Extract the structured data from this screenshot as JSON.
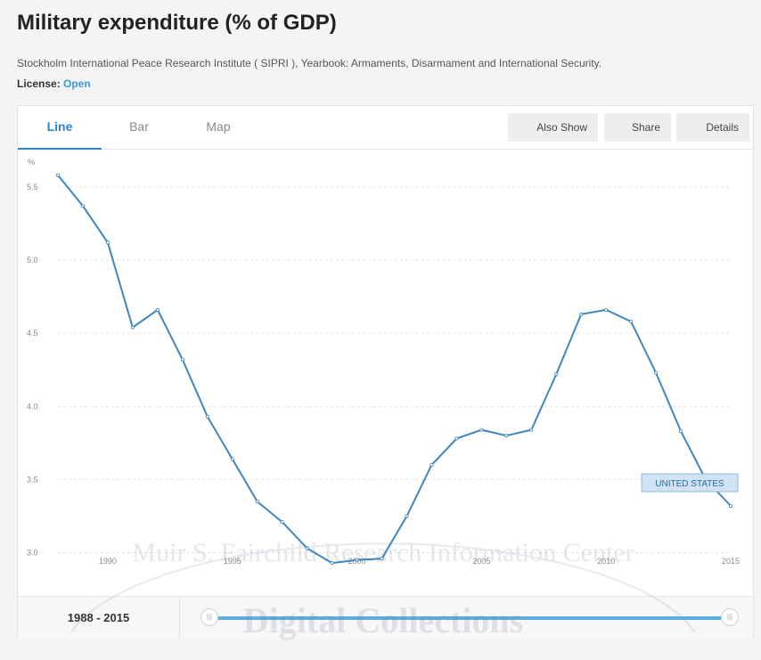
{
  "page": {
    "title": "Military expenditure (% of GDP)",
    "source": "Stockholm International Peace Research Institute ( SIPRI ), Yearbook: Armaments, Disarmament and International Security.",
    "license_label": "License:",
    "license_value": "Open"
  },
  "tabs": [
    {
      "label": "Line",
      "active": true
    },
    {
      "label": "Bar",
      "active": false
    },
    {
      "label": "Map",
      "active": false
    }
  ],
  "toolbar": {
    "also_show": "Also Show",
    "share": "Share",
    "details": "Details"
  },
  "footer": {
    "range_label": "1988 - 2015",
    "range_start": 1988,
    "range_end": 2015
  },
  "watermark": {
    "line1": "Muir S. Fairchild Research Information Center",
    "line2": "Digital Collections"
  },
  "colors": {
    "accent": "#2a86c9",
    "line": "#3d87bd",
    "label_bg": "#cfe3f3"
  },
  "chart_data": {
    "type": "line",
    "ylabel": "%",
    "ylim": [
      2.9,
      5.7
    ],
    "xlim": [
      1988,
      2015
    ],
    "yticks": [
      "3.0",
      "3.5",
      "4.0",
      "4.5",
      "5.0",
      "5.5"
    ],
    "xticks": [
      "1990",
      "1995",
      "2000",
      "2005",
      "2010",
      "2015"
    ],
    "grid": true,
    "series": [
      {
        "name": "UNITED STATES",
        "x": [
          1988,
          1989,
          1990,
          1991,
          1992,
          1993,
          1994,
          1995,
          1996,
          1997,
          1998,
          1999,
          2000,
          2001,
          2002,
          2003,
          2004,
          2005,
          2006,
          2007,
          2008,
          2009,
          2010,
          2011,
          2012,
          2013,
          2014,
          2015
        ],
        "y": [
          5.58,
          5.37,
          5.12,
          4.54,
          4.66,
          4.32,
          3.93,
          3.64,
          3.35,
          3.21,
          3.03,
          2.93,
          2.95,
          2.96,
          3.25,
          3.6,
          3.78,
          3.84,
          3.8,
          3.84,
          4.22,
          4.63,
          4.66,
          4.58,
          4.23,
          3.83,
          3.5,
          3.32
        ]
      }
    ]
  }
}
